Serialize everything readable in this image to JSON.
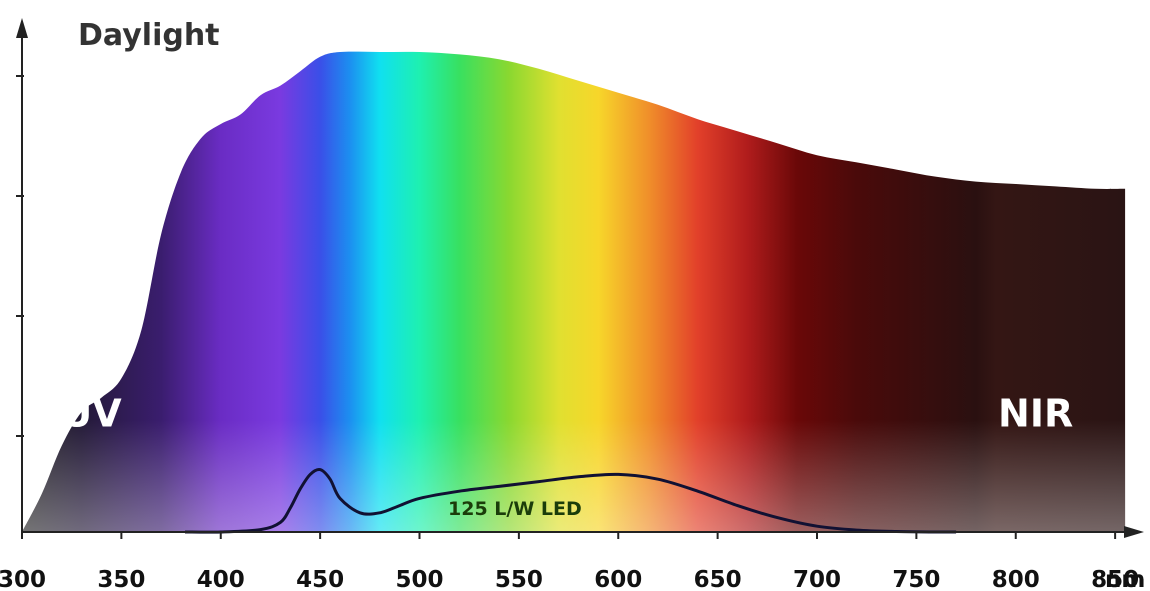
{
  "chart_data": {
    "type": "area",
    "title": "Daylight",
    "xlabel": "",
    "ylabel": "",
    "x_unit": "nm",
    "xlim": [
      300,
      860
    ],
    "ylim": [
      0,
      100
    ],
    "x_ticks": [
      300,
      350,
      400,
      450,
      500,
      550,
      600,
      650,
      700,
      750,
      800,
      850
    ],
    "annotations": [
      {
        "text": "UV",
        "x": 335,
        "y": 22
      },
      {
        "text": "NIR",
        "x": 810,
        "y": 22
      }
    ],
    "series": [
      {
        "name": "Daylight",
        "x": [
          300,
          310,
          320,
          330,
          340,
          350,
          360,
          370,
          380,
          390,
          400,
          410,
          420,
          430,
          440,
          450,
          460,
          480,
          500,
          520,
          540,
          560,
          580,
          600,
          620,
          640,
          660,
          680,
          700,
          720,
          740,
          760,
          780,
          800,
          820,
          840,
          855
        ],
        "y": [
          0,
          8,
          18,
          25,
          28,
          32,
          42,
          62,
          75,
          82,
          85,
          87,
          91,
          93,
          96,
          99,
          100,
          100,
          100,
          99.5,
          98.5,
          96.5,
          94,
          91.5,
          89,
          86,
          83.5,
          81,
          78.5,
          77,
          75.5,
          74,
          73,
          72.5,
          72,
          71.5,
          71.5
        ]
      },
      {
        "name": "125 L/W LED",
        "x": [
          382,
          400,
          420,
          430,
          435,
          440,
          445,
          450,
          455,
          460,
          470,
          480,
          490,
          500,
          520,
          540,
          560,
          580,
          600,
          620,
          640,
          660,
          680,
          700,
          720,
          740,
          760,
          770
        ],
        "y": [
          0,
          0,
          0.5,
          2,
          5,
          9,
          12,
          13,
          11,
          7,
          4,
          4,
          5.5,
          7,
          8.5,
          9.5,
          10.5,
          11.5,
          12,
          11,
          8.5,
          5.5,
          3,
          1.2,
          0.4,
          0.1,
          0,
          0
        ]
      }
    ],
    "colors": {
      "axis": "#222222",
      "led_line": "#111133",
      "label_light": "#ffffff",
      "led_label": "#1b3d0a"
    },
    "spectrum_stops": [
      {
        "nm": 300,
        "color": "#2a2a2a"
      },
      {
        "nm": 330,
        "color": "#241a38"
      },
      {
        "nm": 370,
        "color": "#3a1d6e"
      },
      {
        "nm": 400,
        "color": "#6a2cc4"
      },
      {
        "nm": 430,
        "color": "#7a3ae0"
      },
      {
        "nm": 450,
        "color": "#3a4fe8"
      },
      {
        "nm": 465,
        "color": "#1c8ff0"
      },
      {
        "nm": 480,
        "color": "#10e0f0"
      },
      {
        "nm": 500,
        "color": "#1ef0b0"
      },
      {
        "nm": 520,
        "color": "#38e060"
      },
      {
        "nm": 545,
        "color": "#8ad830"
      },
      {
        "nm": 570,
        "color": "#e0e030"
      },
      {
        "nm": 590,
        "color": "#f7d62a"
      },
      {
        "nm": 615,
        "color": "#f0902a"
      },
      {
        "nm": 640,
        "color": "#e2402a"
      },
      {
        "nm": 665,
        "color": "#b01c1c"
      },
      {
        "nm": 690,
        "color": "#6a0808"
      },
      {
        "nm": 720,
        "color": "#4a0a0a"
      },
      {
        "nm": 780,
        "color": "#2a1010"
      },
      {
        "nm": 790,
        "color": "#341614"
      },
      {
        "nm": 855,
        "color": "#2a1414"
      }
    ]
  }
}
